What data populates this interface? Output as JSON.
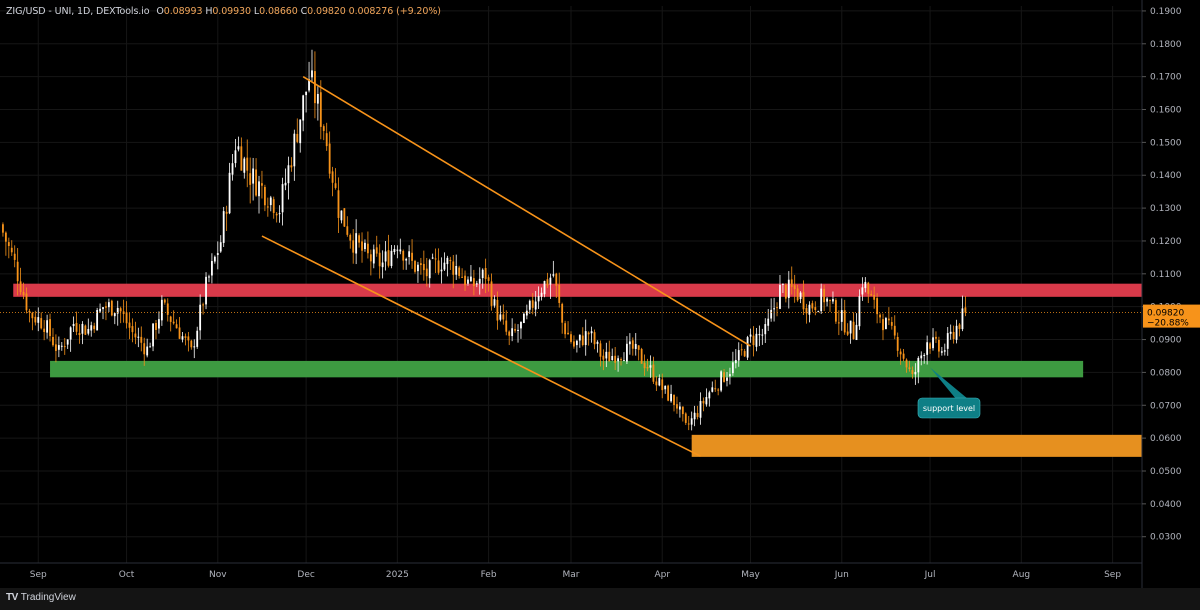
{
  "header": {
    "symbol": "ZIG/USD - UNI, 1D, DEXTools.io",
    "open_label": "O",
    "open": "0.08993",
    "high_label": "H",
    "high": "0.09930",
    "low_label": "L",
    "low": "0.08660",
    "close_label": "C",
    "close": "0.09820",
    "change": "0.008276 (+9.20%)"
  },
  "brand": {
    "name": "TradingView"
  },
  "price_tag": {
    "price": "0.09820",
    "change_pct": "−20.88%"
  },
  "callout": {
    "text": "support level"
  },
  "colors": {
    "up": "#ffffff",
    "down": "#f7931a",
    "resistance": "#d93a4a",
    "support": "#3d9a41",
    "demand": "#e6901f",
    "channel": "#f7931a",
    "callout": "#0e7f86"
  },
  "chart_data": {
    "type": "candlestick",
    "title": "",
    "xlabel": "",
    "ylabel": "",
    "x_ticks": [
      "Sep",
      "Oct",
      "Nov",
      "Dec",
      "2025",
      "Feb",
      "Mar",
      "Apr",
      "May",
      "Jun",
      "Jul",
      "Aug",
      "Sep"
    ],
    "x_tick_days": [
      8,
      38,
      69,
      99,
      130,
      161,
      189,
      220,
      250,
      281,
      311,
      342,
      373
    ],
    "y_ticks": [
      "0.0300",
      "0.0400",
      "0.0500",
      "0.0600",
      "0.0700",
      "0.0800",
      "0.0900",
      "0.1000",
      "0.1100",
      "0.1200",
      "0.1300",
      "0.1400",
      "0.1500",
      "0.1600",
      "0.1700",
      "0.1800",
      "0.1900"
    ],
    "ylim": [
      0.022,
      0.1915
    ],
    "x_range_days": [
      -5,
      383
    ],
    "close_series": [
      [
        -5,
        0.125
      ],
      [
        0,
        0.113
      ],
      [
        5,
        0.098
      ],
      [
        10,
        0.095
      ],
      [
        15,
        0.086
      ],
      [
        20,
        0.095
      ],
      [
        25,
        0.093
      ],
      [
        30,
        0.1
      ],
      [
        35,
        0.1
      ],
      [
        40,
        0.092
      ],
      [
        45,
        0.087
      ],
      [
        50,
        0.1
      ],
      [
        55,
        0.094
      ],
      [
        60,
        0.086
      ],
      [
        65,
        0.106
      ],
      [
        70,
        0.12
      ],
      [
        75,
        0.15
      ],
      [
        80,
        0.14
      ],
      [
        85,
        0.135
      ],
      [
        90,
        0.13
      ],
      [
        95,
        0.15
      ],
      [
        100,
        0.17
      ],
      [
        105,
        0.155
      ],
      [
        110,
        0.13
      ],
      [
        115,
        0.12
      ],
      [
        120,
        0.115
      ],
      [
        125,
        0.113
      ],
      [
        130,
        0.12
      ],
      [
        135,
        0.113
      ],
      [
        140,
        0.11
      ],
      [
        145,
        0.114
      ],
      [
        150,
        0.112
      ],
      [
        155,
        0.106
      ],
      [
        160,
        0.11
      ],
      [
        163,
        0.1
      ],
      [
        168,
        0.09
      ],
      [
        173,
        0.095
      ],
      [
        178,
        0.105
      ],
      [
        183,
        0.11
      ],
      [
        186,
        0.095
      ],
      [
        190,
        0.088
      ],
      [
        195,
        0.092
      ],
      [
        200,
        0.084
      ],
      [
        205,
        0.086
      ],
      [
        210,
        0.087
      ],
      [
        215,
        0.082
      ],
      [
        220,
        0.075
      ],
      [
        225,
        0.07
      ],
      [
        228,
        0.063
      ],
      [
        232,
        0.068
      ],
      [
        236,
        0.074
      ],
      [
        240,
        0.078
      ],
      [
        245,
        0.083
      ],
      [
        250,
        0.09
      ],
      [
        255,
        0.092
      ],
      [
        260,
        0.105
      ],
      [
        265,
        0.105
      ],
      [
        270,
        0.1
      ],
      [
        275,
        0.103
      ],
      [
        280,
        0.097
      ],
      [
        285,
        0.092
      ],
      [
        288,
        0.108
      ],
      [
        292,
        0.1
      ],
      [
        297,
        0.093
      ],
      [
        300,
        0.089
      ],
      [
        305,
        0.078
      ],
      [
        310,
        0.09
      ],
      [
        315,
        0.086
      ],
      [
        320,
        0.094
      ],
      [
        323,
        0.098
      ]
    ],
    "zones": [
      {
        "name": "resistance",
        "y_low": 0.103,
        "y_high": 0.107,
        "x_start": -0.5,
        "x_end": 383
      },
      {
        "name": "support",
        "y_low": 0.0785,
        "y_high": 0.0835,
        "x_start": 12,
        "x_end": 363
      },
      {
        "name": "demand",
        "y_low": 0.0543,
        "y_high": 0.061,
        "x_start": 230,
        "x_end": 383
      }
    ],
    "trendlines": [
      {
        "name": "channel-upper",
        "x1": 98,
        "y1": 0.17,
        "x2": 250,
        "y2": 0.088
      },
      {
        "name": "channel-lower",
        "x1": 84,
        "y1": 0.1215,
        "x2": 233,
        "y2": 0.0545
      }
    ],
    "last_price": 0.0982
  }
}
